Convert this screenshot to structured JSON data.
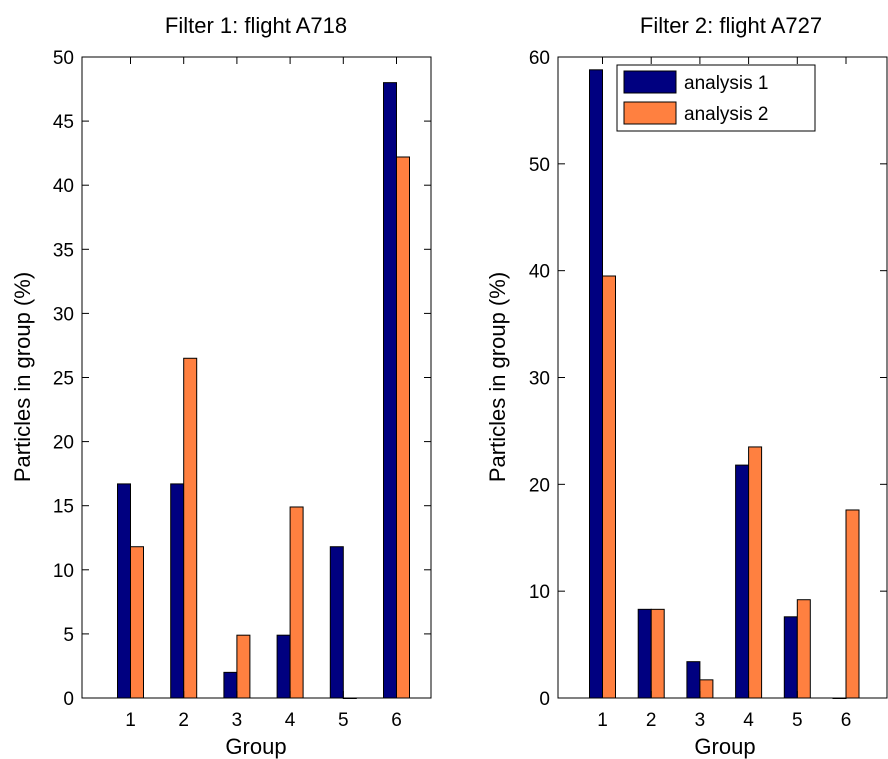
{
  "chart_data": [
    {
      "type": "bar",
      "title": "Filter 1: flight A718",
      "xlabel": "Group",
      "ylabel": "Particles in group (%)",
      "categories": [
        "1",
        "2",
        "3",
        "4",
        "5",
        "6"
      ],
      "ylim": [
        0,
        50
      ],
      "yticks": [
        0,
        5,
        10,
        15,
        20,
        25,
        30,
        35,
        40,
        45,
        50
      ],
      "grid": false,
      "series": [
        {
          "name": "analysis 1",
          "color": "#000080",
          "values": [
            16.7,
            16.7,
            2.0,
            4.9,
            11.8,
            48.0
          ]
        },
        {
          "name": "analysis 2",
          "color": "#ff8040",
          "values": [
            11.8,
            26.5,
            4.9,
            14.9,
            0.0,
            42.2
          ]
        }
      ]
    },
    {
      "type": "bar",
      "title": "Filter 2: flight A727",
      "xlabel": "Group",
      "ylabel": "Particles in group (%)",
      "categories": [
        "1",
        "2",
        "3",
        "4",
        "5",
        "6"
      ],
      "ylim": [
        0,
        60
      ],
      "yticks": [
        0,
        10,
        20,
        30,
        40,
        50,
        60
      ],
      "grid": false,
      "legend_position": "top",
      "series": [
        {
          "name": "analysis 1",
          "color": "#000080",
          "values": [
            58.8,
            8.3,
            3.4,
            21.8,
            7.6,
            0.0
          ]
        },
        {
          "name": "analysis 2",
          "color": "#ff8040",
          "values": [
            39.5,
            8.3,
            1.7,
            23.5,
            9.2,
            17.6
          ]
        }
      ]
    }
  ]
}
